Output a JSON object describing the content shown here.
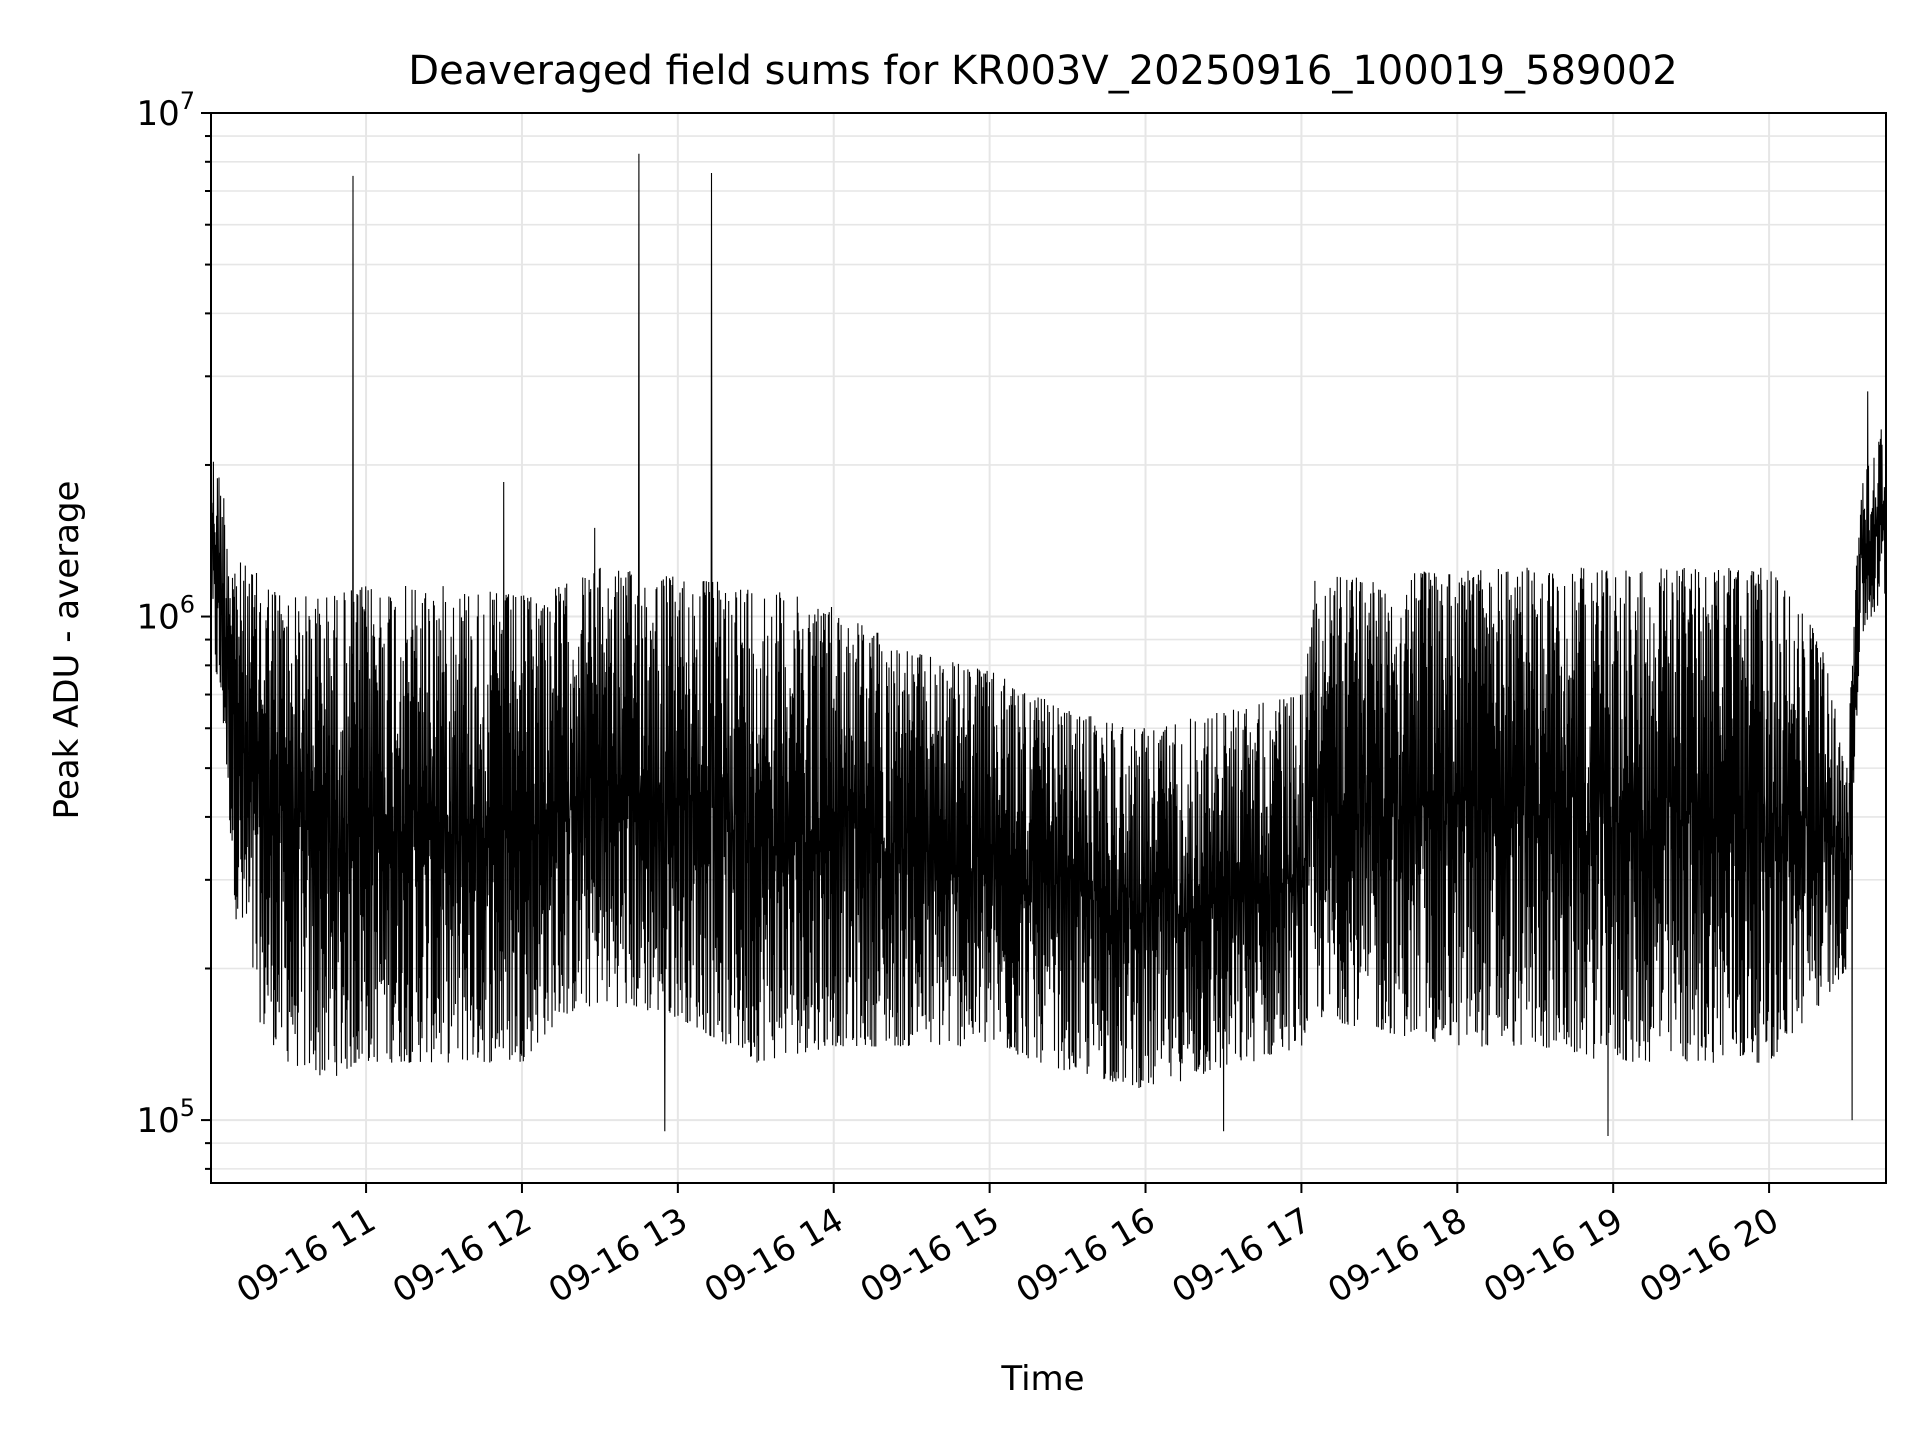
{
  "chart_data": {
    "type": "line",
    "title": "Deaveraged field sums for KR003V_20250916_100019_589002",
    "xlabel": "Time",
    "ylabel": "Peak ADU - average",
    "x_axis": {
      "kind": "datetime",
      "range": [
        "2025-09-16T10:00:19",
        "2025-09-16T20:45:00"
      ],
      "ticks": [
        {
          "value": "2025-09-16T11:00",
          "label": "09-16 11"
        },
        {
          "value": "2025-09-16T12:00",
          "label": "09-16 12"
        },
        {
          "value": "2025-09-16T13:00",
          "label": "09-16 13"
        },
        {
          "value": "2025-09-16T14:00",
          "label": "09-16 14"
        },
        {
          "value": "2025-09-16T15:00",
          "label": "09-16 15"
        },
        {
          "value": "2025-09-16T16:00",
          "label": "09-16 16"
        },
        {
          "value": "2025-09-16T17:00",
          "label": "09-16 17"
        },
        {
          "value": "2025-09-16T18:00",
          "label": "09-16 18"
        },
        {
          "value": "2025-09-16T19:00",
          "label": "09-16 19"
        },
        {
          "value": "2025-09-16T20:00",
          "label": "09-16 20"
        }
      ]
    },
    "y_axis": {
      "scale": "log",
      "range": [
        75000,
        10000000
      ],
      "ticks": [
        {
          "value": 100000,
          "base": "10",
          "exp": "5"
        },
        {
          "value": 1000000,
          "base": "10",
          "exp": "6"
        },
        {
          "value": 10000000,
          "base": "10",
          "exp": "7"
        }
      ]
    },
    "grid": true,
    "legend": "none",
    "line_color": "#000000",
    "grid_color": "#e6e6e6",
    "series": [
      {
        "envelope": [
          {
            "x": "2025-09-16T10:00",
            "low": 900000,
            "high": 2200000
          },
          {
            "x": "2025-09-16T10:05",
            "low": 600000,
            "high": 1800000
          },
          {
            "x": "2025-09-16T10:10",
            "low": 250000,
            "high": 1300000
          },
          {
            "x": "2025-09-16T10:20",
            "low": 150000,
            "high": 1200000
          },
          {
            "x": "2025-09-16T10:30",
            "low": 130000,
            "high": 1100000
          },
          {
            "x": "2025-09-16T10:45",
            "low": 120000,
            "high": 1100000
          },
          {
            "x": "2025-09-16T11:00",
            "low": 130000,
            "high": 1150000
          },
          {
            "x": "2025-09-16T11:30",
            "low": 130000,
            "high": 1150000
          },
          {
            "x": "2025-09-16T12:00",
            "low": 130000,
            "high": 1100000
          },
          {
            "x": "2025-09-16T12:15",
            "low": 160000,
            "high": 1150000
          },
          {
            "x": "2025-09-16T12:30",
            "low": 170000,
            "high": 1250000
          },
          {
            "x": "2025-09-16T13:00",
            "low": 160000,
            "high": 1200000
          },
          {
            "x": "2025-09-16T13:30",
            "low": 130000,
            "high": 1150000
          },
          {
            "x": "2025-09-16T14:00",
            "low": 140000,
            "high": 1050000
          },
          {
            "x": "2025-09-16T14:30",
            "low": 140000,
            "high": 850000
          },
          {
            "x": "2025-09-16T15:00",
            "low": 140000,
            "high": 780000
          },
          {
            "x": "2025-09-16T15:30",
            "low": 125000,
            "high": 650000
          },
          {
            "x": "2025-09-16T16:00",
            "low": 115000,
            "high": 600000
          },
          {
            "x": "2025-09-16T16:30",
            "low": 125000,
            "high": 650000
          },
          {
            "x": "2025-09-16T17:00",
            "low": 140000,
            "high": 700000
          },
          {
            "x": "2025-09-16T17:05",
            "low": 160000,
            "high": 1200000
          },
          {
            "x": "2025-09-16T17:30",
            "low": 150000,
            "high": 1200000
          },
          {
            "x": "2025-09-16T18:00",
            "low": 140000,
            "high": 1250000
          },
          {
            "x": "2025-09-16T18:30",
            "low": 140000,
            "high": 1250000
          },
          {
            "x": "2025-09-16T19:00",
            "low": 130000,
            "high": 1250000
          },
          {
            "x": "2025-09-16T19:30",
            "low": 130000,
            "high": 1250000
          },
          {
            "x": "2025-09-16T20:00",
            "low": 130000,
            "high": 1250000
          },
          {
            "x": "2025-09-16T20:20",
            "low": 170000,
            "high": 900000
          },
          {
            "x": "2025-09-16T20:30",
            "low": 200000,
            "high": 500000
          },
          {
            "x": "2025-09-16T20:35",
            "low": 900000,
            "high": 1800000
          },
          {
            "x": "2025-09-16T20:45",
            "low": 1100000,
            "high": 2500000
          }
        ],
        "spikes": [
          {
            "x": "2025-09-16T10:55",
            "y": 7500000
          },
          {
            "x": "2025-09-16T11:53",
            "y": 1850000
          },
          {
            "x": "2025-09-16T12:28",
            "y": 1500000
          },
          {
            "x": "2025-09-16T12:45",
            "y": 8300000
          },
          {
            "x": "2025-09-16T12:55",
            "y": 95000
          },
          {
            "x": "2025-09-16T13:13",
            "y": 7600000
          },
          {
            "x": "2025-09-16T16:30",
            "y": 95000
          },
          {
            "x": "2025-09-16T18:58",
            "y": 93000
          },
          {
            "x": "2025-09-16T20:32",
            "y": 100000
          },
          {
            "x": "2025-09-16T20:38",
            "y": 2800000
          }
        ]
      }
    ]
  }
}
